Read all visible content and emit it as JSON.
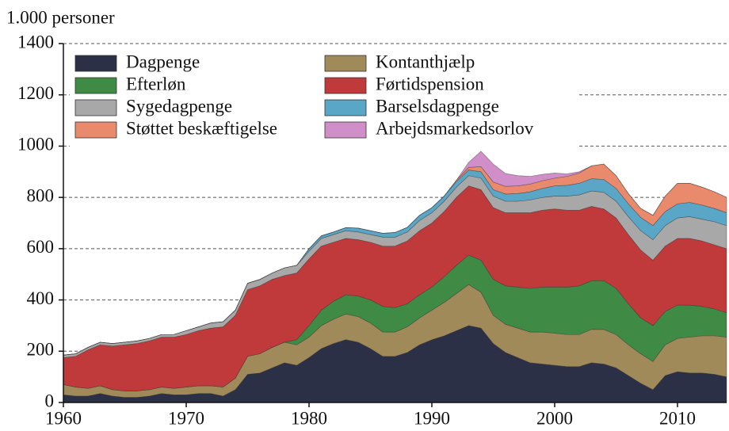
{
  "chart_data": {
    "type": "stacked_area",
    "y_label": "1.000 personer",
    "x": [
      1960,
      1961,
      1962,
      1963,
      1964,
      1965,
      1966,
      1967,
      1968,
      1969,
      1970,
      1971,
      1972,
      1973,
      1974,
      1975,
      1976,
      1977,
      1978,
      1979,
      1980,
      1981,
      1982,
      1983,
      1984,
      1985,
      1986,
      1987,
      1988,
      1989,
      1990,
      1991,
      1992,
      1993,
      1994,
      1995,
      1996,
      1997,
      1998,
      1999,
      2000,
      2001,
      2002,
      2003,
      2004,
      2005,
      2006,
      2007,
      2008,
      2009,
      2010,
      2011,
      2012,
      2013,
      2014
    ],
    "xlim": [
      1960,
      2014
    ],
    "xticks": [
      1960,
      1970,
      1980,
      1990,
      2000,
      2010
    ],
    "ylim": [
      0,
      1400
    ],
    "yticks": [
      0,
      200,
      400,
      600,
      800,
      1000,
      1200,
      1400
    ],
    "grid": true,
    "legend": "upper left",
    "series": [
      {
        "name": "Dagpenge",
        "color": "#2b3047",
        "values": [
          30,
          25,
          25,
          35,
          25,
          20,
          20,
          25,
          35,
          30,
          30,
          35,
          35,
          25,
          50,
          110,
          115,
          135,
          155,
          145,
          175,
          210,
          230,
          245,
          235,
          210,
          180,
          180,
          195,
          225,
          245,
          260,
          280,
          300,
          290,
          230,
          195,
          175,
          155,
          150,
          145,
          140,
          140,
          155,
          150,
          135,
          105,
          75,
          50,
          105,
          120,
          115,
          115,
          110,
          100
        ]
      },
      {
        "name": "Kontanthjælp",
        "color": "#a08a5a",
        "values": [
          40,
          35,
          30,
          30,
          25,
          25,
          25,
          25,
          25,
          25,
          30,
          30,
          30,
          35,
          45,
          70,
          75,
          80,
          80,
          80,
          80,
          90,
          95,
          100,
          100,
          100,
          95,
          95,
          100,
          105,
          115,
          130,
          145,
          160,
          140,
          110,
          110,
          115,
          120,
          125,
          125,
          125,
          125,
          130,
          135,
          130,
          120,
          115,
          110,
          120,
          130,
          140,
          145,
          150,
          155
        ]
      },
      {
        "name": "Efterløn",
        "color": "#3f8a45",
        "values": [
          0,
          0,
          0,
          0,
          0,
          0,
          0,
          0,
          0,
          0,
          0,
          0,
          0,
          0,
          0,
          0,
          0,
          0,
          0,
          20,
          45,
          60,
          70,
          75,
          80,
          90,
          100,
          95,
          90,
          90,
          90,
          100,
          110,
          115,
          125,
          140,
          150,
          160,
          170,
          175,
          180,
          185,
          190,
          190,
          190,
          180,
          160,
          140,
          140,
          130,
          130,
          125,
          115,
          105,
          95
        ]
      },
      {
        "name": "Førtidspension",
        "color": "#c0393b",
        "values": [
          105,
          120,
          150,
          160,
          170,
          180,
          185,
          190,
          195,
          200,
          205,
          215,
          225,
          235,
          245,
          260,
          265,
          265,
          260,
          260,
          260,
          250,
          230,
          220,
          220,
          225,
          235,
          240,
          245,
          250,
          250,
          255,
          265,
          270,
          275,
          280,
          285,
          290,
          295,
          300,
          305,
          300,
          295,
          290,
          280,
          275,
          270,
          265,
          255,
          255,
          260,
          260,
          255,
          250,
          250
        ]
      },
      {
        "name": "Sygedagpenge",
        "color": "#a8a8a8",
        "values": [
          10,
          10,
          10,
          10,
          10,
          10,
          10,
          10,
          10,
          10,
          15,
          15,
          20,
          20,
          20,
          25,
          25,
          25,
          30,
          30,
          30,
          30,
          30,
          30,
          30,
          30,
          35,
          35,
          35,
          40,
          40,
          40,
          40,
          40,
          45,
          45,
          45,
          45,
          50,
          50,
          50,
          55,
          60,
          60,
          65,
          65,
          70,
          75,
          80,
          80,
          80,
          85,
          85,
          90,
          90
        ]
      },
      {
        "name": "Barselsdagpenge",
        "color": "#5aa6c6",
        "values": [
          0,
          0,
          0,
          0,
          0,
          0,
          0,
          0,
          0,
          0,
          0,
          0,
          0,
          0,
          0,
          0,
          0,
          0,
          0,
          0,
          10,
          10,
          10,
          12,
          15,
          15,
          15,
          18,
          18,
          20,
          20,
          20,
          22,
          22,
          25,
          25,
          28,
          30,
          32,
          35,
          40,
          42,
          45,
          48,
          50,
          50,
          50,
          52,
          55,
          55,
          55,
          55,
          55,
          52,
          50
        ]
      },
      {
        "name": "Støttet beskæftigelse",
        "color": "#e98a6c",
        "values": [
          0,
          0,
          0,
          0,
          0,
          0,
          0,
          0,
          0,
          0,
          0,
          0,
          0,
          0,
          0,
          0,
          0,
          0,
          0,
          0,
          0,
          0,
          0,
          0,
          0,
          0,
          0,
          0,
          0,
          0,
          0,
          0,
          5,
          10,
          20,
          30,
          30,
          30,
          30,
          30,
          30,
          35,
          40,
          50,
          60,
          50,
          40,
          35,
          40,
          60,
          80,
          75,
          70,
          65,
          60
        ]
      },
      {
        "name": "Arbejdsmarkedsorlov",
        "color": "#d08fc8",
        "values": [
          0,
          0,
          0,
          0,
          0,
          0,
          0,
          0,
          0,
          0,
          0,
          0,
          0,
          0,
          0,
          0,
          0,
          0,
          0,
          0,
          0,
          0,
          0,
          0,
          0,
          0,
          0,
          0,
          0,
          0,
          0,
          0,
          0,
          20,
          60,
          70,
          50,
          40,
          30,
          25,
          20,
          10,
          5,
          0,
          0,
          0,
          0,
          0,
          0,
          0,
          0,
          0,
          0,
          0,
          0
        ]
      }
    ]
  }
}
